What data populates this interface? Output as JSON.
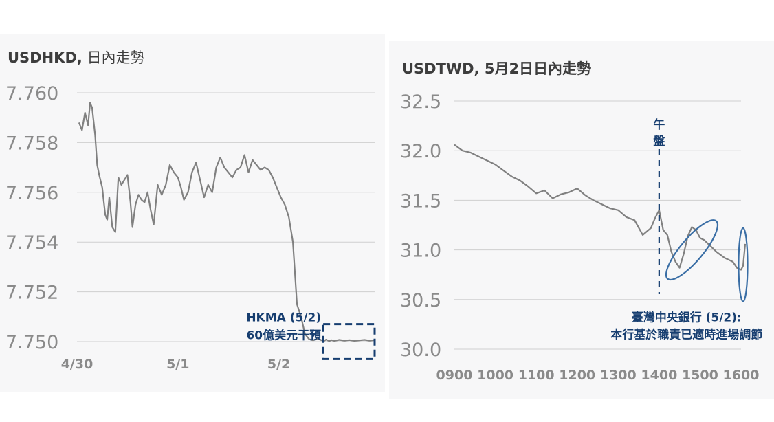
{
  "charts": {
    "left": {
      "title_bold": "USDHKD,",
      "title_rest": " 日內走勢"
    },
    "right": {
      "title_bold": "USDTWD,",
      "title_rest": " 5月2日日內走勢"
    }
  },
  "chart_data": [
    {
      "type": "line",
      "title": "USDHKD, 日內走勢",
      "xlabel": "",
      "ylabel": "",
      "ylim": [
        7.75,
        7.76
      ],
      "yticks": [
        "7.760",
        "7.758",
        "7.756",
        "7.754",
        "7.752",
        "7.750"
      ],
      "ytick_values": [
        7.76,
        7.758,
        7.756,
        7.754,
        7.752,
        7.75
      ],
      "xticks": [
        "4/30",
        "5/1",
        "5/2"
      ],
      "xtick_positions": [
        0,
        1,
        2
      ],
      "xlim": [
        0,
        2.95
      ],
      "grid": true,
      "line_color": "#808080",
      "series": [
        {
          "x": [
            0.02,
            0.05,
            0.08,
            0.11,
            0.13,
            0.15,
            0.18,
            0.2,
            0.22,
            0.25,
            0.28,
            0.3,
            0.32,
            0.35,
            0.38,
            0.41,
            0.44,
            0.47,
            0.5,
            0.53,
            0.55,
            0.58,
            0.61,
            0.64,
            0.67,
            0.7,
            0.73,
            0.76,
            0.8,
            0.84,
            0.88,
            0.92,
            0.96,
            1.0,
            1.03,
            1.06,
            1.1,
            1.14,
            1.18,
            1.22,
            1.26,
            1.3,
            1.34,
            1.38,
            1.42,
            1.46,
            1.5,
            1.54,
            1.58,
            1.62,
            1.66,
            1.7,
            1.74,
            1.78,
            1.82,
            1.86,
            1.9,
            1.94,
            1.98,
            2.02,
            2.06,
            2.1,
            2.14,
            2.18,
            2.22,
            2.26,
            2.3,
            2.34,
            2.38,
            2.42,
            2.45,
            2.47,
            2.5,
            2.52,
            2.55,
            2.6,
            2.65,
            2.7,
            2.75,
            2.8,
            2.85,
            2.9,
            2.95
          ],
          "y": [
            7.7588,
            7.7585,
            7.7592,
            7.7587,
            7.7596,
            7.7594,
            7.7583,
            7.7571,
            7.7567,
            7.7562,
            7.7551,
            7.7549,
            7.7558,
            7.7546,
            7.7544,
            7.7566,
            7.7563,
            7.7565,
            7.7567,
            7.7556,
            7.7546,
            7.7555,
            7.7559,
            7.7557,
            7.7556,
            7.756,
            7.7553,
            7.7547,
            7.7563,
            7.7559,
            7.7563,
            7.7571,
            7.7568,
            7.7566,
            7.7562,
            7.7557,
            7.756,
            7.7568,
            7.7572,
            7.7565,
            7.7558,
            7.7563,
            7.756,
            7.757,
            7.7574,
            7.757,
            7.7568,
            7.7566,
            7.7569,
            7.757,
            7.7575,
            7.7568,
            7.7573,
            7.7571,
            7.7569,
            7.757,
            7.7569,
            7.7566,
            7.7562,
            7.7558,
            7.7555,
            7.755,
            7.754,
            7.7515,
            7.751,
            7.7503,
            7.7501,
            7.75005,
            7.75012,
            7.75006,
            7.75003,
            7.75008,
            7.75002,
            7.75006,
            7.75003,
            7.75007,
            7.75004,
            7.75006,
            7.75003,
            7.75005,
            7.75007,
            7.75004,
            7.75006
          ]
        }
      ],
      "annotations": [
        {
          "text": [
            "HKMA (5/2)",
            "60億美元干預"
          ],
          "color": "#173e70",
          "style": "dashed-box",
          "box_x": [
            2.44,
            2.95
          ],
          "box_y": [
            7.7493,
            7.7507
          ]
        }
      ]
    },
    {
      "type": "line",
      "title": "USDTWD, 5月2日日內走勢",
      "xlabel": "",
      "ylabel": "",
      "ylim": [
        30.0,
        32.5
      ],
      "yticks": [
        "32.5",
        "32.0",
        "31.5",
        "31.0",
        "30.5",
        "30.0"
      ],
      "ytick_values": [
        32.5,
        32.0,
        31.5,
        31.0,
        30.5,
        30.0
      ],
      "xticks": [
        "0900",
        "1000",
        "1100",
        "1200",
        "1300",
        "1400",
        "1500",
        "1600"
      ],
      "xtick_positions": [
        900,
        1000,
        1100,
        1200,
        1300,
        1400,
        1500,
        1600
      ],
      "xlim": [
        900,
        1600
      ],
      "grid": true,
      "line_color": "#808080",
      "series": [
        {
          "x": [
            900,
            920,
            940,
            960,
            980,
            1000,
            1020,
            1040,
            1060,
            1080,
            1100,
            1120,
            1140,
            1160,
            1180,
            1200,
            1220,
            1240,
            1260,
            1280,
            1300,
            1320,
            1340,
            1360,
            1380,
            1390,
            1400,
            1410,
            1420,
            1430,
            1440,
            1450,
            1460,
            1470,
            1480,
            1490,
            1500,
            1510,
            1520,
            1530,
            1540,
            1550,
            1560,
            1570,
            1580,
            1590,
            1600,
            1605,
            1610
          ],
          "y": [
            32.06,
            32.0,
            31.98,
            31.94,
            31.9,
            31.86,
            31.8,
            31.74,
            31.7,
            31.64,
            31.57,
            31.6,
            31.52,
            31.56,
            31.58,
            31.62,
            31.55,
            31.5,
            31.46,
            31.42,
            31.4,
            31.33,
            31.3,
            31.15,
            31.22,
            31.32,
            31.4,
            31.2,
            31.15,
            30.98,
            30.88,
            30.82,
            30.96,
            31.14,
            31.23,
            31.2,
            31.12,
            31.1,
            31.06,
            31.02,
            30.98,
            30.95,
            30.92,
            30.9,
            30.88,
            30.82,
            30.8,
            30.84,
            31.06
          ]
        }
      ],
      "annotations": [
        {
          "type": "vline",
          "x": 1400,
          "label": [
            "午",
            "盤"
          ],
          "style": "dashed",
          "color": "#173e70"
        },
        {
          "type": "ellipse",
          "x_range": [
            1430,
            1530
          ],
          "y_range": [
            30.62,
            31.38
          ],
          "color": "#3a6ea5"
        },
        {
          "type": "ellipse",
          "x_range": [
            1585,
            1625
          ],
          "y_range": [
            30.48,
            31.22
          ],
          "color": "#3a6ea5"
        },
        {
          "type": "text",
          "text": [
            "臺灣中央銀行 (5/2):",
            "本行基於職責已適時進場調節"
          ],
          "color": "#173e70"
        }
      ]
    }
  ]
}
